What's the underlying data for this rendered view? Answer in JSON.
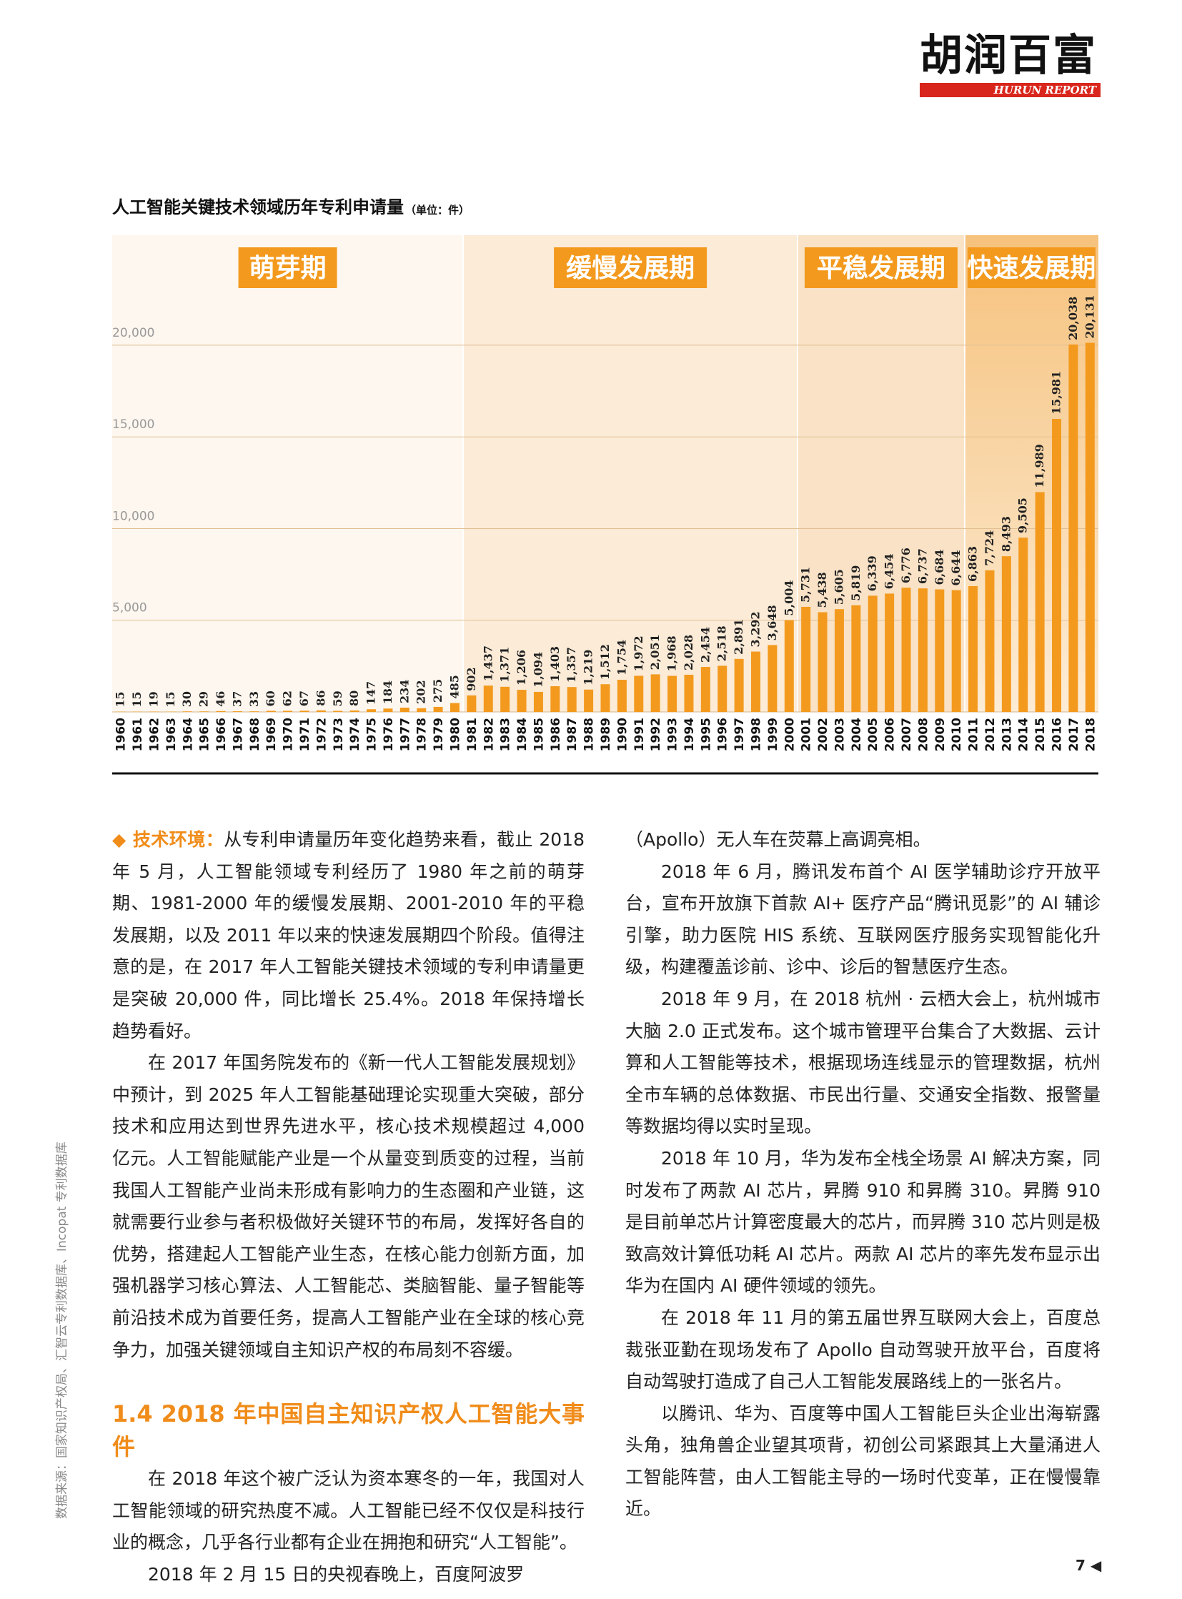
{
  "logo": {
    "cn": "胡润百富",
    "en": "HURUN REPORT"
  },
  "chart_data": {
    "type": "bar",
    "title": "人工智能关键技术领域历年专利申请量",
    "subtitle": "（单位：件）",
    "phases": [
      "萌芽期",
      "缓慢发展期",
      "平稳发展期",
      "快速发展期"
    ],
    "categories": [
      "1960",
      "1961",
      "1962",
      "1963",
      "1964",
      "1965",
      "1966",
      "1967",
      "1968",
      "1969",
      "1970",
      "1971",
      "1972",
      "1973",
      "1974",
      "1975",
      "1976",
      "1977",
      "1978",
      "1979",
      "1980",
      "1981",
      "1982",
      "1983",
      "1984",
      "1985",
      "1986",
      "1987",
      "1988",
      "1989",
      "1990",
      "1991",
      "1992",
      "1993",
      "1994",
      "1995",
      "1996",
      "1997",
      "1998",
      "1999",
      "2000",
      "2001",
      "2002",
      "2003",
      "2004",
      "2005",
      "2006",
      "2007",
      "2008",
      "2009",
      "2010",
      "2011",
      "2012",
      "2013",
      "2014",
      "2015",
      "2016",
      "2017",
      "2018"
    ],
    "values": [
      15,
      15,
      19,
      15,
      30,
      29,
      46,
      37,
      33,
      60,
      62,
      67,
      86,
      59,
      80,
      147,
      184,
      234,
      202,
      275,
      485,
      902,
      1437,
      1371,
      1206,
      1094,
      1403,
      1357,
      1219,
      1512,
      1754,
      1972,
      2051,
      1968,
      2028,
      2454,
      2518,
      2891,
      3292,
      3648,
      5004,
      5731,
      5438,
      5605,
      5819,
      6339,
      6454,
      6776,
      6737,
      6684,
      6644,
      6863,
      7724,
      8493,
      9505,
      11989,
      15981,
      20038,
      20131
    ],
    "value_labels": [
      "15",
      "15",
      "19",
      "15",
      "30",
      "29",
      "46",
      "37",
      "33",
      "60",
      "62",
      "67",
      "86",
      "59",
      "80",
      "147",
      "184",
      "234",
      "202",
      "275",
      "485",
      "902",
      "1,437",
      "1,371",
      "1,206",
      "1,094",
      "1,403",
      "1,357",
      "1,219",
      "1,512",
      "1,754",
      "1,972",
      "2,051",
      "1,968",
      "2,028",
      "2,454",
      "2,518",
      "2,891",
      "3,292",
      "3,648",
      "5,004",
      "5,731",
      "5,438",
      "5,605",
      "5,819",
      "6,339",
      "6,454",
      "6,776",
      "6,737",
      "6,684",
      "6,644",
      "6,863",
      "7,724",
      "8,493",
      "9,505",
      "11,989",
      "15,981",
      "20,038",
      "20,131"
    ],
    "color": "#f39a1e",
    "ylim": [
      0,
      26000
    ],
    "yticks": [
      {
        "value": 5000,
        "label": "5,000"
      },
      {
        "value": 10000,
        "label": "10,000"
      },
      {
        "value": 15000,
        "label": "15,000"
      },
      {
        "value": 20000,
        "label": "20,000"
      }
    ],
    "grid": true
  },
  "left": {
    "lead": "◆ 技术环境：",
    "p1": "从专利申请量历年变化趋势来看，截止 2018 年 5 月，人工智能领域专利经历了 1980 年之前的萌芽期、1981-2000 年的缓慢发展期、2001-2010 年的平稳发展期，以及 2011 年以来的快速发展期四个阶段。值得注意的是，在 2017 年人工智能关键技术领域的专利申请量更是突破 20,000 件，同比增长 25.4%。2018 年保持增长趋势看好。",
    "p2": "在 2017 年国务院发布的《新一代人工智能发展规划》中预计，到 2025 年人工智能基础理论实现重大突破，部分技术和应用达到世界先进水平，核心技术规模超过 4,000 亿元。人工智能赋能产业是一个从量变到质变的过程，当前我国人工智能产业尚未形成有影响力的生态圈和产业链，这就需要行业参与者积极做好关键环节的布局，发挥好各自的优势，搭建起人工智能产业生态，在核心能力创新方面，加强机器学习核心算法、人工智能芯、类脑智能、量子智能等前沿技术成为首要任务，提高人工智能产业在全球的核心竞争力，加强关键领域自主知识产权的布局刻不容缓。",
    "heading": "1.4 2018 年中国自主知识产权人工智能大事件",
    "p3": "在 2018 年这个被广泛认为资本寒冬的一年，我国对人工智能领域的研究热度不减。人工智能已经不仅仅是科技行业的概念，几乎各行业都有企业在拥抱和研究“人工智能”。",
    "p4": "2018 年 2 月 15 日的央视春晚上，百度阿波罗"
  },
  "right": {
    "p0": "（Apollo）无人车在荧幕上高调亮相。",
    "p1": "2018 年 6 月，腾讯发布首个 AI 医学辅助诊疗开放平台，宣布开放旗下首款 AI+ 医疗产品“腾讯觅影”的 AI 辅诊引擎，助力医院 HIS 系统、互联网医疗服务实现智能化升级，构建覆盖诊前、诊中、诊后的智慧医疗生态。",
    "p2": "2018 年 9 月，在 2018 杭州 · 云栖大会上，杭州城市大脑 2.0 正式发布。这个城市管理平台集合了大数据、云计算和人工智能等技术，根据现场连线显示的管理数据，杭州全市车辆的总体数据、市民出行量、交通安全指数、报警量等数据均得以实时呈现。",
    "p3": "2018 年 10 月，华为发布全栈全场景 AI 解决方案，同时发布了两款 AI 芯片，昇腾 910 和昇腾 310。昇腾 910 是目前单芯片计算密度最大的芯片，而昇腾 310 芯片则是极致高效计算低功耗 AI 芯片。两款 AI 芯片的率先发布显示出华为在国内 AI 硬件领域的领先。",
    "p4": "在 2018 年 11 月的第五届世界互联网大会上，百度总裁张亚勤在现场发布了 Apollo 自动驾驶开放平台，百度将自动驾驶打造成了自己人工智能发展路线上的一张名片。",
    "p5": "以腾讯、华为、百度等中国人工智能巨头企业出海崭露头角，独角兽企业望其项背，初创公司紧跟其上大量涌进人工智能阵营，由人工智能主导的一场时代变革，正在慢慢靠近。"
  },
  "side_note": "数据来源：国家知识产权局、汇智云专利数据库、Incopat 专利数据库",
  "page_number": "7"
}
